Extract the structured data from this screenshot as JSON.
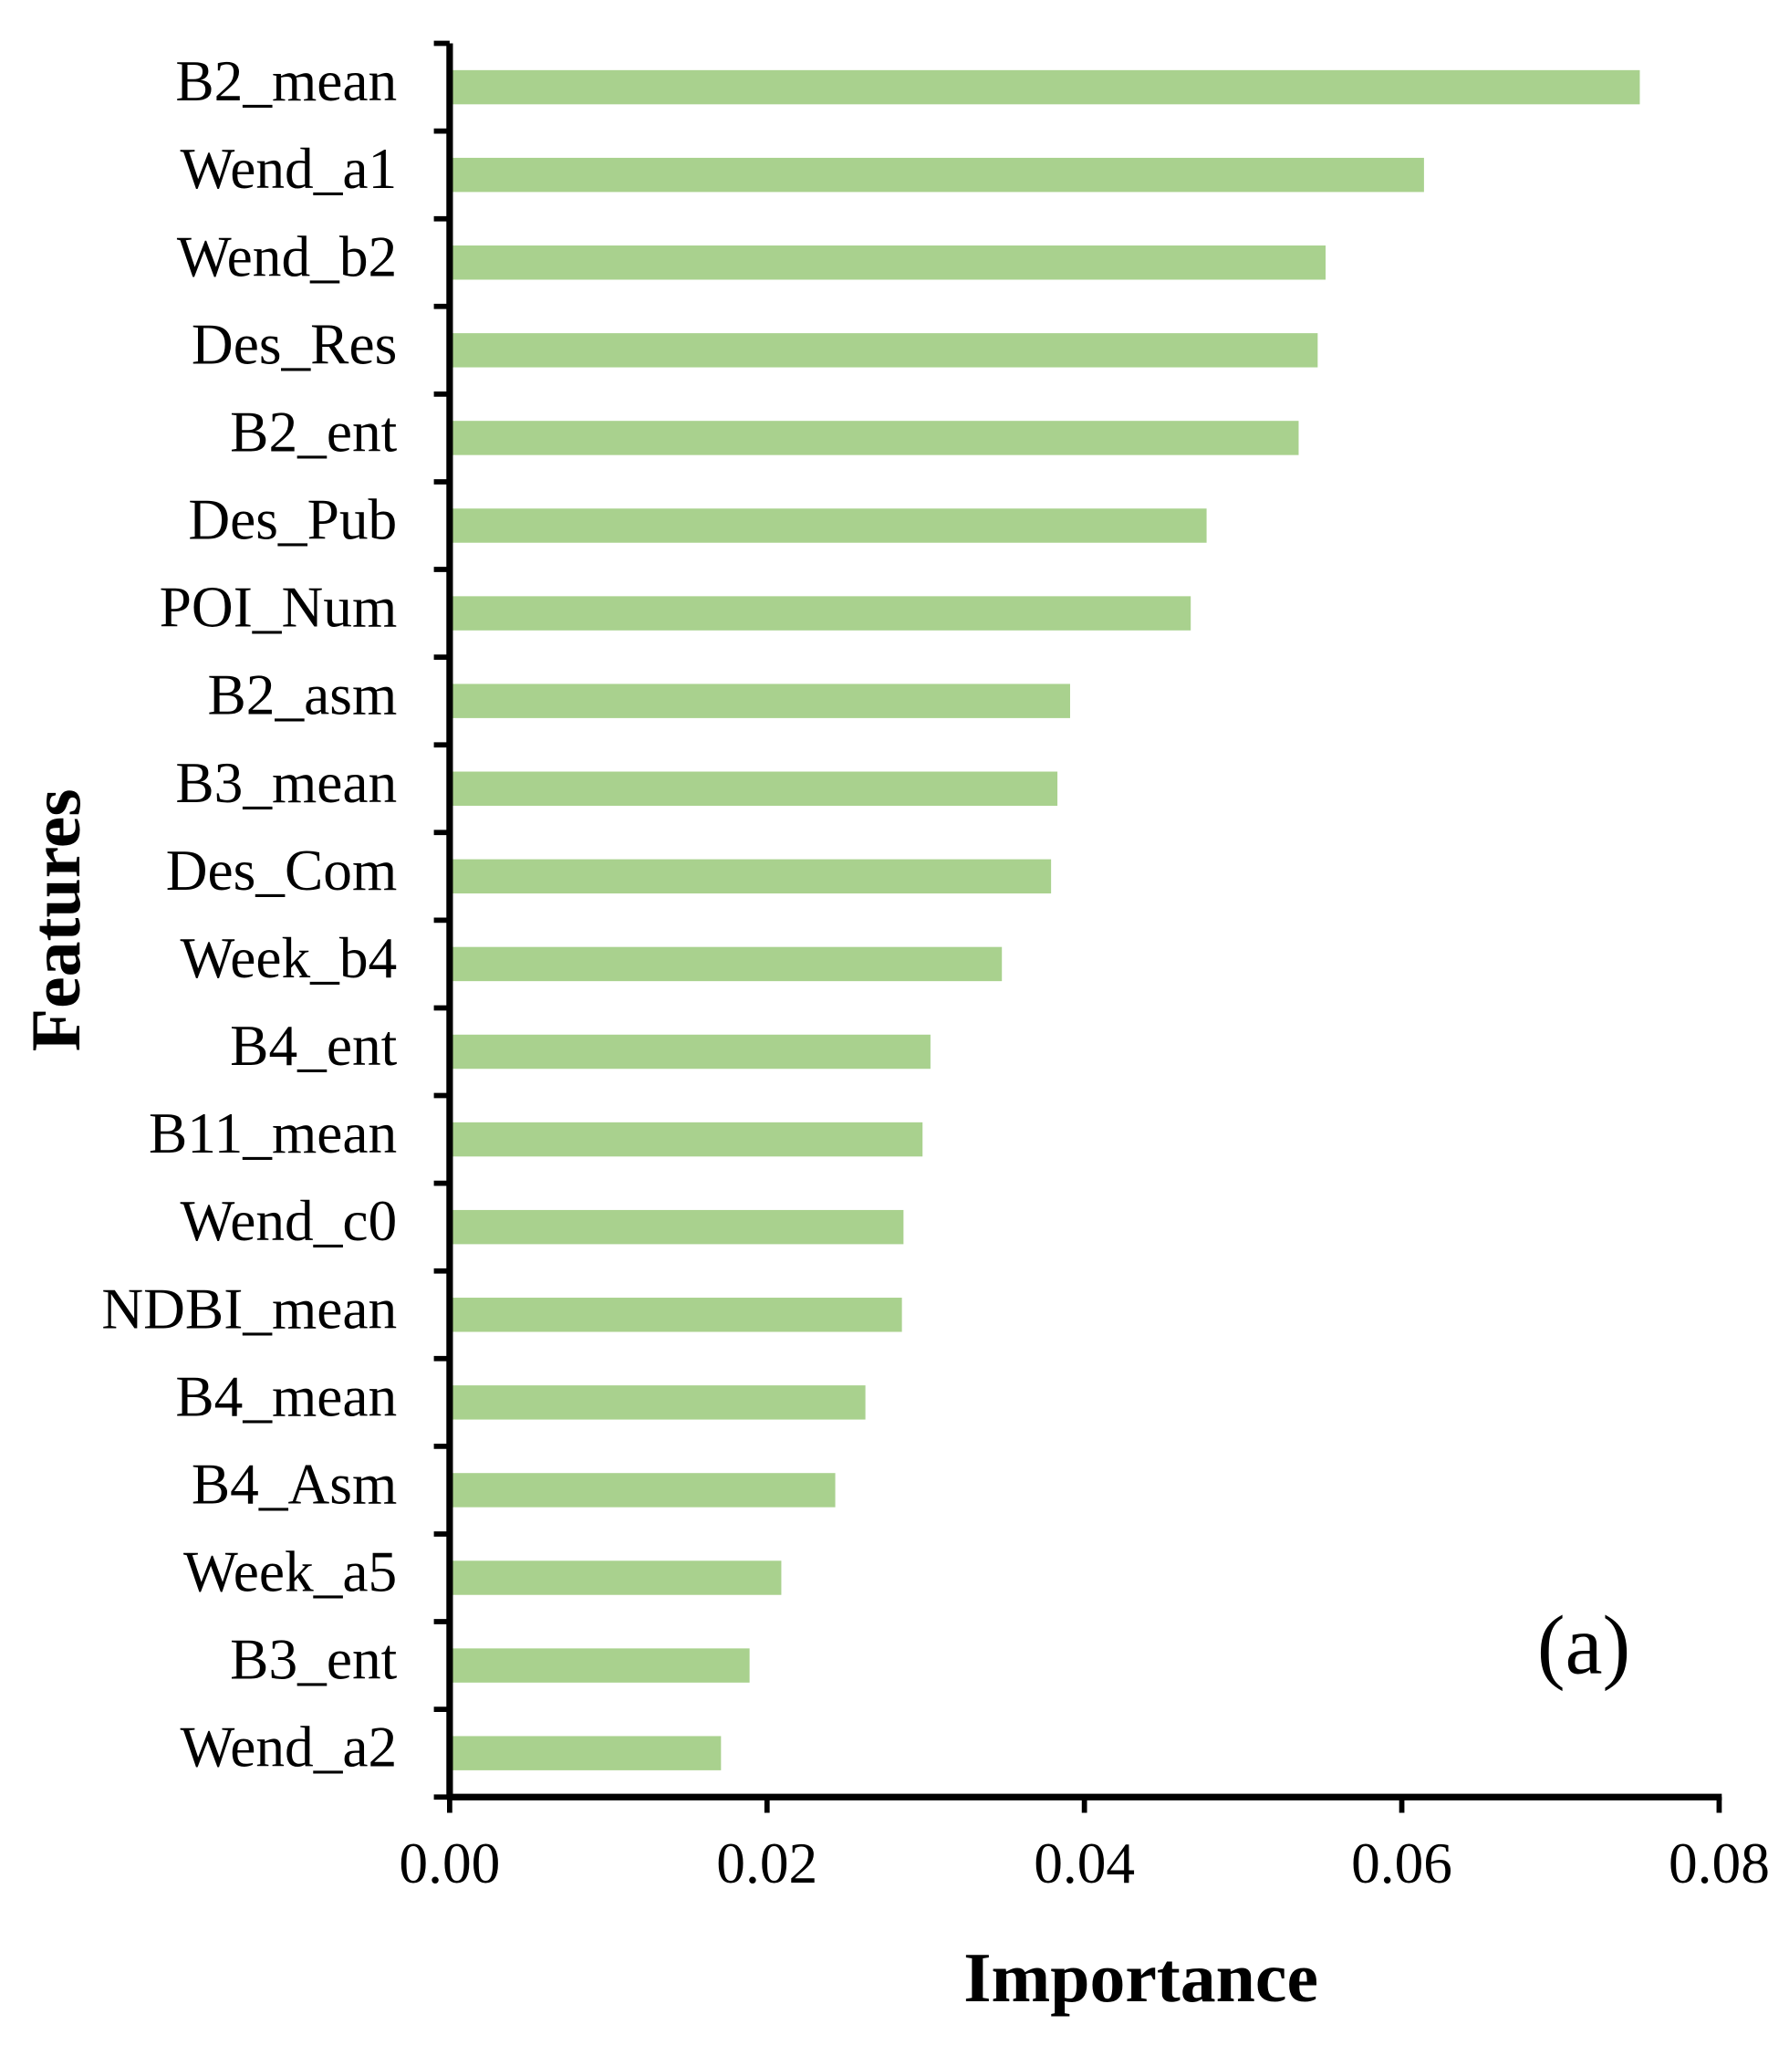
{
  "chart_data": {
    "type": "bar",
    "orientation": "horizontal",
    "x_label": "Importance",
    "y_label": "Features",
    "annotation": "(a)",
    "categories": [
      "B2_mean",
      "Wend_a1",
      "Wend_b2",
      "Des_Res",
      "B2_ent",
      "Des_Pub",
      "POI_Num",
      "B2_asm",
      "B3_mean",
      "Des_Com",
      "Week_b4",
      "B4_ent",
      "B11_mean",
      "Wend_c0",
      "NDBI_mean",
      "B4_mean",
      "B4_Asm",
      "Week_a5",
      "B3_ent",
      "Wend_a2"
    ],
    "values": [
      0.075,
      0.0614,
      0.0552,
      0.0547,
      0.0535,
      0.0477,
      0.0467,
      0.0391,
      0.0383,
      0.0379,
      0.0348,
      0.0303,
      0.0298,
      0.0286,
      0.0285,
      0.0262,
      0.0243,
      0.0209,
      0.0189,
      0.0171
    ],
    "color": "#a9d18e",
    "xlim": [
      0,
      0.08
    ],
    "xticks": [
      {
        "value": 0,
        "label": "0.00"
      },
      {
        "value": 0.02,
        "label": "0.02"
      },
      {
        "value": 0.04,
        "label": "0.04"
      },
      {
        "value": 0.06,
        "label": "0.06"
      },
      {
        "value": 0.08,
        "label": "0.08"
      }
    ],
    "grid": false
  }
}
